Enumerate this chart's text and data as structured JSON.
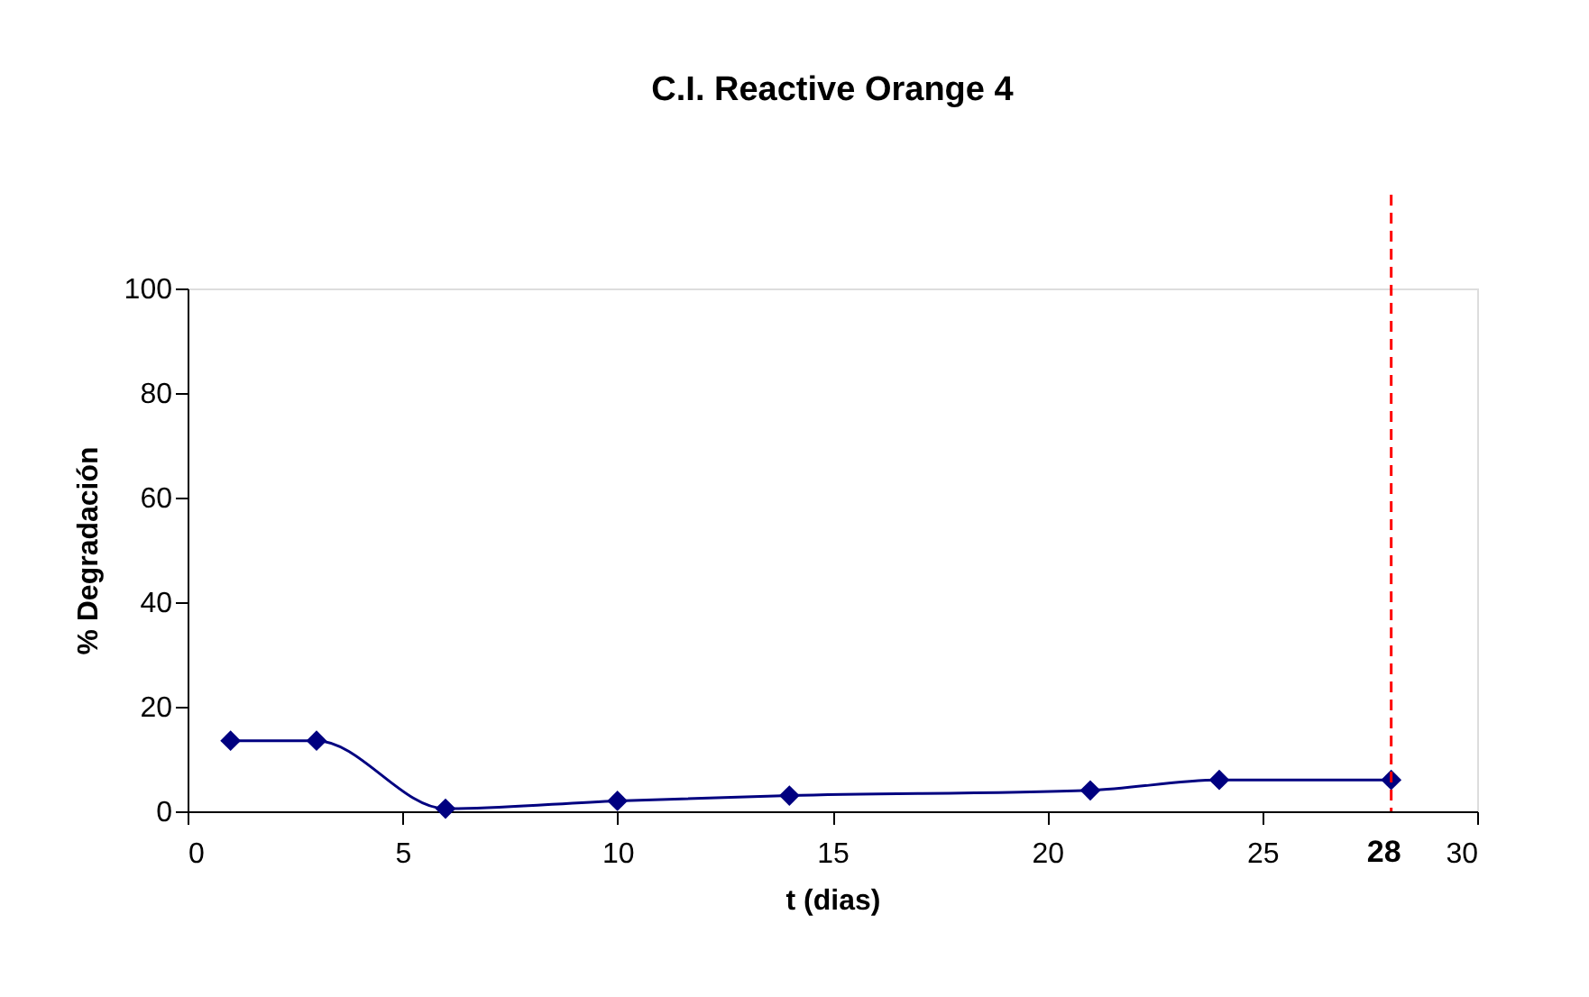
{
  "chart_data": {
    "type": "line",
    "title": "C.I. Reactive Orange 4",
    "xlabel": "t (dias)",
    "ylabel": "% Degradación",
    "x": [
      1,
      3,
      6,
      10,
      14,
      21,
      24,
      28
    ],
    "series": [
      {
        "color": "#000080",
        "values": [
          13.5,
          13.5,
          0.5,
          2,
          3,
          4,
          6,
          6
        ]
      }
    ],
    "xlim": [
      0,
      30
    ],
    "xticks": [
      0,
      5,
      10,
      15,
      20,
      25,
      30
    ],
    "ylim": [
      0,
      100
    ],
    "yticks": [
      0,
      20,
      40,
      60,
      80,
      100
    ],
    "ref_lines": [
      {
        "axis": "x",
        "value": 28,
        "label": "28",
        "color": "#ff0000",
        "line_style": "dashed"
      }
    ],
    "marker": "diamond",
    "line_style": "solid",
    "grid": false
  }
}
